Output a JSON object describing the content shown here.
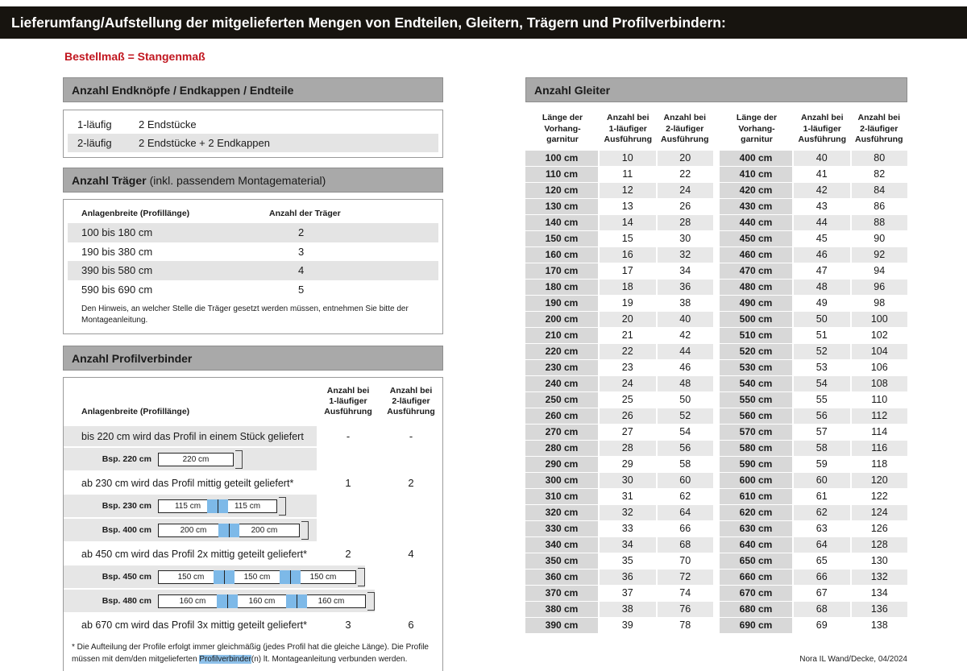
{
  "page": {
    "title": "Lieferumfang/Aufstellung der mitgelieferten Mengen von Endteilen, Gleitern, Trägern und Profilverbindern:",
    "subtitle": "Bestellmaß = Stangenmaß",
    "footer": "Nora IL Wand/Decke, 04/2024",
    "colors": {
      "accent_red": "#c1161f",
      "header_gray": "#a9a9a9",
      "row_gray": "#e4e4e4",
      "cell_gray": "#d8d8d8",
      "connector_blue": "#7db9e8",
      "topbar_black": "#17140f"
    }
  },
  "endteile": {
    "header": "Anzahl Endknöpfe / Endkappen / Endteile",
    "rows": [
      {
        "label": "1-läufig",
        "value": "2 Endstücke"
      },
      {
        "label": "2-läufig",
        "value": "2 Endstücke + 2 Endkappen"
      }
    ]
  },
  "traeger": {
    "header_bold": "Anzahl Träger",
    "header_normal": "(inkl. passendem Montagematerial)",
    "col_width": "Anlagenbreite (Profillänge)",
    "col_count": "Anzahl der Träger",
    "rows": [
      {
        "range": "100 bis 180 cm",
        "count": "2"
      },
      {
        "range": "190 bis 380 cm",
        "count": "3"
      },
      {
        "range": "390 bis 580 cm",
        "count": "4"
      },
      {
        "range": "590 bis 690 cm",
        "count": "5"
      }
    ],
    "note": "Den Hinweis, an welcher Stelle die Träger gesetzt werden müssen, entnehmen Sie bitte der Montageanleitung."
  },
  "profilverbinder": {
    "header": "Anzahl Profilverbinder",
    "col_width": "Anlagenbreite (Profillänge)",
    "col_one_lines": [
      "Anzahl bei",
      "1-läufiger",
      "Ausführung"
    ],
    "col_two_lines": [
      "Anzahl bei",
      "2-läufiger",
      "Ausführung"
    ],
    "sections": [
      {
        "text": "bis 220 cm wird das Profil in einem Stück geliefert",
        "one": "-",
        "two": "-",
        "examples": [
          {
            "label": "Bsp. 220 cm",
            "segments": [
              "220 cm"
            ]
          }
        ]
      },
      {
        "text": "ab 230 cm wird das Profil mittig geteilt geliefert*",
        "one": "1",
        "two": "2",
        "examples": [
          {
            "label": "Bsp. 230 cm",
            "segments": [
              "115 cm",
              "115 cm"
            ]
          },
          {
            "label": "Bsp. 400 cm",
            "segments": [
              "200 cm",
              "200 cm"
            ]
          }
        ]
      },
      {
        "text": "ab 450 cm wird das Profil 2x mittig geteilt geliefert*",
        "one": "2",
        "two": "4",
        "examples": [
          {
            "label": "Bsp. 450 cm",
            "segments": [
              "150 cm",
              "150 cm",
              "150 cm"
            ]
          },
          {
            "label": "Bsp. 480 cm",
            "segments": [
              "160 cm",
              "160 cm",
              "160 cm"
            ]
          }
        ]
      },
      {
        "text": "ab 670 cm wird das Profil 3x mittig geteilt geliefert*",
        "one": "3",
        "two": "6",
        "examples": []
      }
    ],
    "footnote": {
      "before": "* Die Aufteilung der Profile erfolgt immer gleichmäßig (jedes Profil hat die gleiche Länge). Die Profile müssen mit dem/den mitgelieferten ",
      "highlight": "Profilverbinder",
      "after": "(n) lt. Montageanleitung verbunden werden."
    }
  },
  "gleiter": {
    "header": "Anzahl Gleiter",
    "col_len_lines": [
      "Länge der",
      "Vorhang-",
      "garnitur"
    ],
    "col_one_lines": [
      "Anzahl bei",
      "1-läufiger",
      "Ausführung"
    ],
    "col_two_lines": [
      "Anzahl bei",
      "2-läufiger",
      "Ausführung"
    ],
    "table_left": [
      [
        "100 cm",
        "10",
        "20"
      ],
      [
        "110 cm",
        "11",
        "22"
      ],
      [
        "120 cm",
        "12",
        "24"
      ],
      [
        "130 cm",
        "13",
        "26"
      ],
      [
        "140 cm",
        "14",
        "28"
      ],
      [
        "150 cm",
        "15",
        "30"
      ],
      [
        "160 cm",
        "16",
        "32"
      ],
      [
        "170 cm",
        "17",
        "34"
      ],
      [
        "180 cm",
        "18",
        "36"
      ],
      [
        "190 cm",
        "19",
        "38"
      ],
      [
        "200 cm",
        "20",
        "40"
      ],
      [
        "210 cm",
        "21",
        "42"
      ],
      [
        "220 cm",
        "22",
        "44"
      ],
      [
        "230 cm",
        "23",
        "46"
      ],
      [
        "240 cm",
        "24",
        "48"
      ],
      [
        "250 cm",
        "25",
        "50"
      ],
      [
        "260 cm",
        "26",
        "52"
      ],
      [
        "270 cm",
        "27",
        "54"
      ],
      [
        "280 cm",
        "28",
        "56"
      ],
      [
        "290 cm",
        "29",
        "58"
      ],
      [
        "300 cm",
        "30",
        "60"
      ],
      [
        "310 cm",
        "31",
        "62"
      ],
      [
        "320 cm",
        "32",
        "64"
      ],
      [
        "330 cm",
        "33",
        "66"
      ],
      [
        "340 cm",
        "34",
        "68"
      ],
      [
        "350 cm",
        "35",
        "70"
      ],
      [
        "360 cm",
        "36",
        "72"
      ],
      [
        "370 cm",
        "37",
        "74"
      ],
      [
        "380 cm",
        "38",
        "76"
      ],
      [
        "390 cm",
        "39",
        "78"
      ]
    ],
    "table_right": [
      [
        "400 cm",
        "40",
        "80"
      ],
      [
        "410 cm",
        "41",
        "82"
      ],
      [
        "420 cm",
        "42",
        "84"
      ],
      [
        "430 cm",
        "43",
        "86"
      ],
      [
        "440 cm",
        "44",
        "88"
      ],
      [
        "450 cm",
        "45",
        "90"
      ],
      [
        "460 cm",
        "46",
        "92"
      ],
      [
        "470 cm",
        "47",
        "94"
      ],
      [
        "480 cm",
        "48",
        "96"
      ],
      [
        "490 cm",
        "49",
        "98"
      ],
      [
        "500 cm",
        "50",
        "100"
      ],
      [
        "510 cm",
        "51",
        "102"
      ],
      [
        "520 cm",
        "52",
        "104"
      ],
      [
        "530 cm",
        "53",
        "106"
      ],
      [
        "540 cm",
        "54",
        "108"
      ],
      [
        "550 cm",
        "55",
        "110"
      ],
      [
        "560 cm",
        "56",
        "112"
      ],
      [
        "570 cm",
        "57",
        "114"
      ],
      [
        "580 cm",
        "58",
        "116"
      ],
      [
        "590 cm",
        "59",
        "118"
      ],
      [
        "600 cm",
        "60",
        "120"
      ],
      [
        "610 cm",
        "61",
        "122"
      ],
      [
        "620 cm",
        "62",
        "124"
      ],
      [
        "630 cm",
        "63",
        "126"
      ],
      [
        "640 cm",
        "64",
        "128"
      ],
      [
        "650 cm",
        "65",
        "130"
      ],
      [
        "660 cm",
        "66",
        "132"
      ],
      [
        "670 cm",
        "67",
        "134"
      ],
      [
        "680 cm",
        "68",
        "136"
      ],
      [
        "690 cm",
        "69",
        "138"
      ]
    ]
  }
}
